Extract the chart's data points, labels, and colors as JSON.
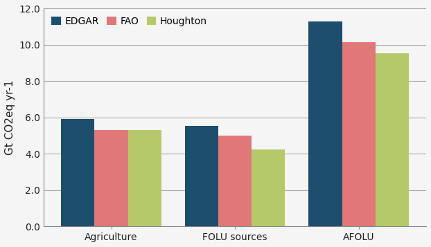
{
  "categories": [
    "Agriculture",
    "FOLU sources",
    "AFOLU"
  ],
  "series": {
    "EDGAR": [
      5.9,
      5.55,
      11.3
    ],
    "FAO": [
      5.3,
      5.0,
      10.15
    ],
    "Houghton": [
      5.3,
      4.25,
      9.55
    ]
  },
  "colors": {
    "EDGAR": "#1c4e6e",
    "FAO": "#e07878",
    "Houghton": "#b5c96a"
  },
  "ylabel": "Gt CO2eq yr-1",
  "ylim": [
    0,
    12.0
  ],
  "yticks": [
    0.0,
    2.0,
    4.0,
    6.0,
    8.0,
    10.0,
    12.0
  ],
  "legend_labels": [
    "EDGAR",
    "FAO",
    "Houghton"
  ],
  "bar_width": 0.27,
  "background_color": "#f5f5f5",
  "plot_bg_color": "#f5f5f5",
  "grid_color": "#aaaaaa",
  "axis_color": "#888888",
  "tick_fontsize": 10,
  "label_fontsize": 11,
  "legend_fontsize": 10
}
